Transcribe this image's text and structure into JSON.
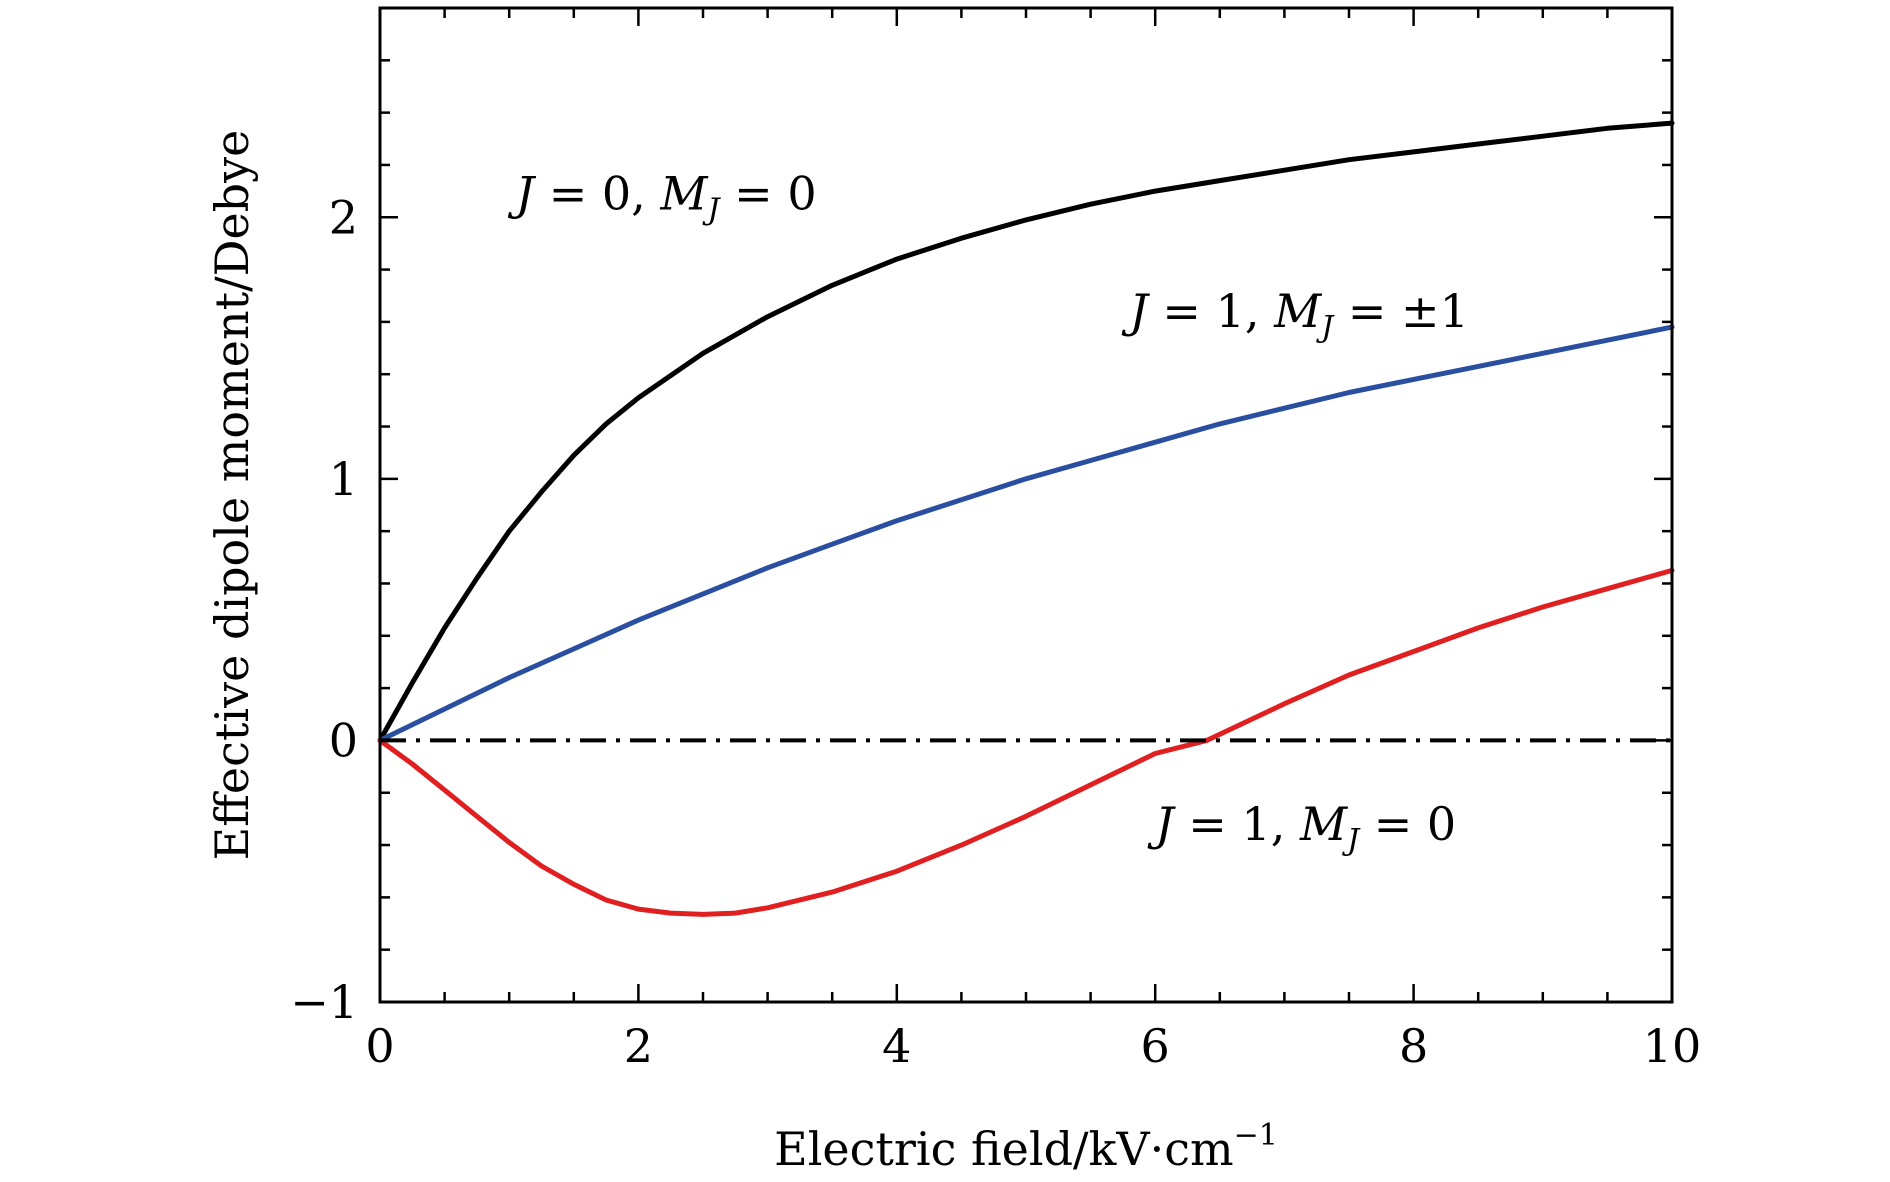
{
  "chart_data": {
    "type": "line",
    "title": "",
    "xlabel": "Electric field/kV·cm",
    "xlabel_sup": "−1",
    "ylabel": "Effective dipole moment/Debye",
    "xlim": [
      0,
      10
    ],
    "ylim": [
      -1,
      2.8
    ],
    "x_ticks": [
      "0",
      "2",
      "4",
      "6",
      "8",
      "10"
    ],
    "y_ticks": [
      "−1",
      "0",
      "1",
      "2"
    ],
    "x_tick_values": [
      0,
      2,
      4,
      6,
      8,
      10
    ],
    "y_tick_values": [
      -1,
      0,
      1,
      2
    ],
    "x_minor_step": 0.5,
    "y_minor_step": 0.2,
    "grid": false,
    "legend": "none",
    "series": [
      {
        "color": "#000000",
        "x": [
          0,
          0.25,
          0.5,
          0.75,
          1.0,
          1.25,
          1.5,
          1.75,
          2.0,
          2.5,
          3.0,
          3.5,
          4.0,
          4.5,
          5.0,
          5.5,
          6.0,
          6.5,
          7.0,
          7.5,
          8.0,
          8.5,
          9.0,
          9.5,
          10.0
        ],
        "y": [
          0,
          0.22,
          0.43,
          0.62,
          0.8,
          0.95,
          1.09,
          1.21,
          1.31,
          1.48,
          1.62,
          1.74,
          1.84,
          1.92,
          1.99,
          2.05,
          2.1,
          2.14,
          2.18,
          2.22,
          2.25,
          2.28,
          2.31,
          2.34,
          2.36
        ]
      },
      {
        "color": "#2a4fa0",
        "x": [
          0,
          0.5,
          1.0,
          1.5,
          2.0,
          2.5,
          3.0,
          3.5,
          4.0,
          4.5,
          5.0,
          5.5,
          6.0,
          6.5,
          7.0,
          7.5,
          8.0,
          8.5,
          9.0,
          9.5,
          10.0
        ],
        "y": [
          0,
          0.12,
          0.24,
          0.35,
          0.46,
          0.56,
          0.66,
          0.75,
          0.84,
          0.92,
          1.0,
          1.07,
          1.14,
          1.21,
          1.27,
          1.33,
          1.38,
          1.43,
          1.48,
          1.53,
          1.58
        ]
      },
      {
        "color": "#e02020",
        "x": [
          0,
          0.25,
          0.5,
          0.75,
          1.0,
          1.25,
          1.5,
          1.75,
          2.0,
          2.25,
          2.5,
          2.75,
          3.0,
          3.5,
          4.0,
          4.5,
          5.0,
          5.5,
          6.0,
          6.4,
          7.0,
          7.5,
          8.0,
          8.5,
          9.0,
          9.5,
          10.0
        ],
        "y": [
          0,
          -0.09,
          -0.19,
          -0.29,
          -0.39,
          -0.48,
          -0.55,
          -0.61,
          -0.645,
          -0.66,
          -0.665,
          -0.66,
          -0.64,
          -0.58,
          -0.5,
          -0.4,
          -0.29,
          -0.17,
          -0.05,
          0.0,
          0.14,
          0.25,
          0.34,
          0.43,
          0.51,
          0.58,
          0.65
        ]
      },
      {
        "color": "#000000",
        "dash": "dash-dot",
        "x": [
          0,
          10
        ],
        "y": [
          0,
          0
        ]
      }
    ],
    "annotations": [
      {
        "J_label": "J",
        "J_value": "= 0,",
        "M_label": "M",
        "M_sub": "J",
        "M_value": "= 0",
        "x": 1.05,
        "y": 2.03
      },
      {
        "J_label": "J",
        "J_value": "= 1,",
        "M_label": "M",
        "M_sub": "J",
        "M_value": "= ±1",
        "x": 5.8,
        "y": 1.58
      },
      {
        "J_label": "J",
        "J_value": "= 1,",
        "M_label": "M",
        "M_sub": "J",
        "M_value": "= 0",
        "x": 6.0,
        "y": -0.38
      }
    ]
  }
}
